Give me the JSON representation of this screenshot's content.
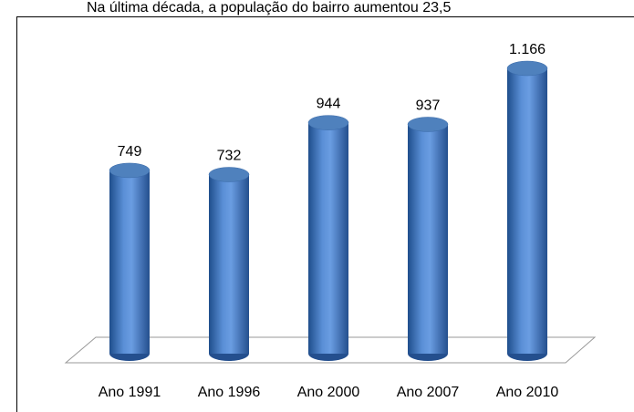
{
  "chart_data": {
    "type": "cylinder-bar",
    "title": "Na última década, a população do bairro aumentou 23,5",
    "categories": [
      "Ano 1991",
      "Ano 1996",
      "Ano 2000",
      "Ano 2007",
      "Ano 2010"
    ],
    "values": [
      749,
      732,
      944,
      937,
      1166
    ],
    "value_labels": [
      "749",
      "732",
      "944",
      "937",
      "1.166"
    ],
    "color": "#4f81bd"
  }
}
